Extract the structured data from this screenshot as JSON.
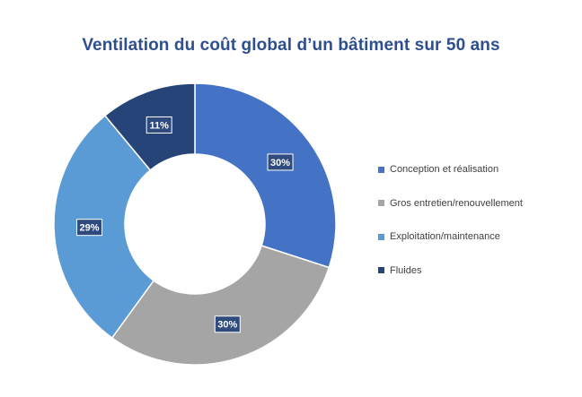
{
  "chart_data": {
    "type": "pie",
    "title": "Ventilation du coût global d’un bâtiment sur 50 ans",
    "categories": [
      "Conception et réalisation",
      "Gros entretien/renouvellement",
      "Exploitation/maintenance",
      "Fluides"
    ],
    "values": [
      30,
      30,
      29,
      11
    ],
    "data_labels": [
      "30%",
      "30%",
      "29%",
      "11%"
    ],
    "colors": [
      "#4472c4",
      "#a5a5a5",
      "#5b9bd5",
      "#264478"
    ],
    "donut": true,
    "legend_position": "right"
  }
}
